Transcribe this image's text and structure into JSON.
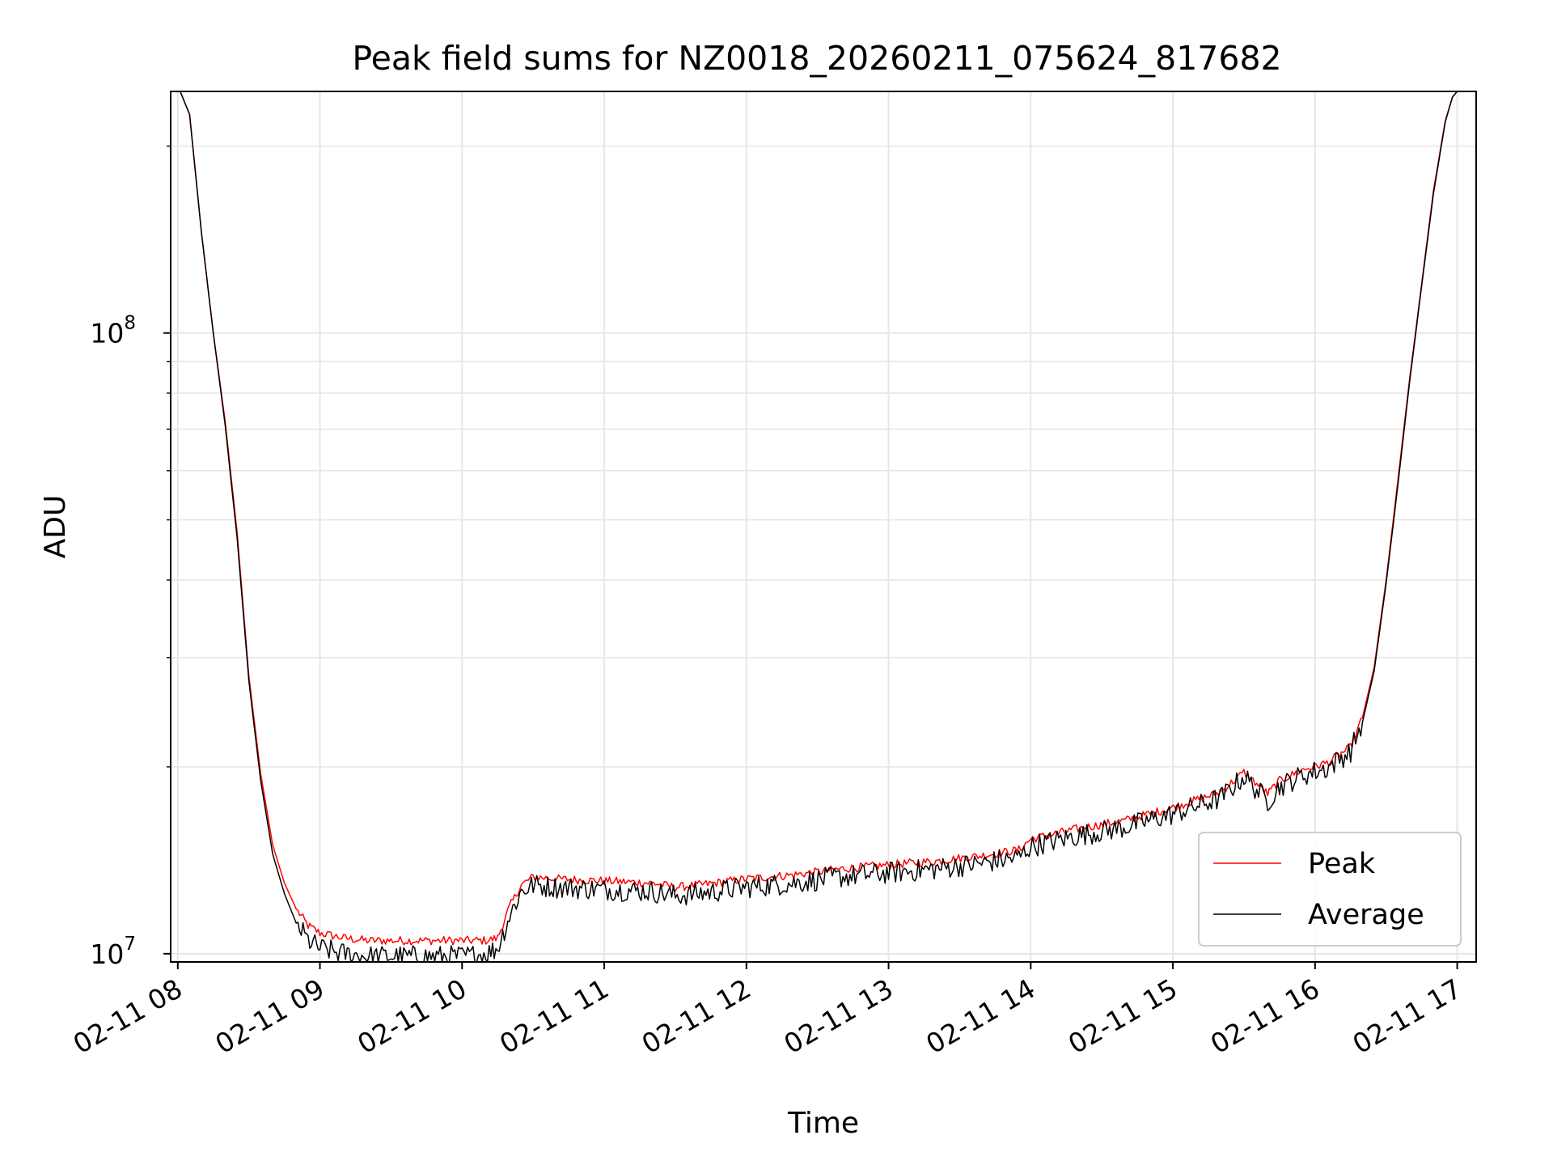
{
  "chart_data": {
    "type": "line",
    "title": "Peak field sums for NZ0018_20260211_075624_817682",
    "xlabel": "Time",
    "ylabel": "ADU",
    "yscale": "log",
    "grid": true,
    "legend_position": "lower-right",
    "xlim": [
      "02-11 07:57",
      "02-11 17:08"
    ],
    "ylim": [
      9700000,
      245000000
    ],
    "x_ticks": [
      "02-11 08",
      "02-11 09",
      "02-11 10",
      "02-11 11",
      "02-11 12",
      "02-11 13",
      "02-11 14",
      "02-11 15",
      "02-11 16",
      "02-11 17"
    ],
    "y_ticks": [
      {
        "base": "10",
        "exp": "7",
        "value": 10000000
      },
      {
        "base": "10",
        "exp": "8",
        "value": 100000000
      }
    ],
    "x": [
      "02-11 07:57",
      "02-11 08:01",
      "02-11 08:05",
      "02-11 08:10",
      "02-11 08:15",
      "02-11 08:20",
      "02-11 08:25",
      "02-11 08:30",
      "02-11 08:35",
      "02-11 08:40",
      "02-11 08:45",
      "02-11 08:50",
      "02-11 08:55",
      "02-11 09:00",
      "02-11 09:10",
      "02-11 09:20",
      "02-11 09:30",
      "02-11 09:40",
      "02-11 09:50",
      "02-11 10:00",
      "02-11 10:10",
      "02-11 10:15",
      "02-11 10:20",
      "02-11 10:25",
      "02-11 10:30",
      "02-11 10:40",
      "02-11 11:00",
      "02-11 11:20",
      "02-11 11:30",
      "02-11 11:40",
      "02-11 12:00",
      "02-11 12:20",
      "02-11 12:40",
      "02-11 13:00",
      "02-11 13:20",
      "02-11 13:40",
      "02-11 13:55",
      "02-11 14:00",
      "02-11 14:20",
      "02-11 14:40",
      "02-11 15:00",
      "02-11 15:20",
      "02-11 15:30",
      "02-11 15:40",
      "02-11 15:45",
      "02-11 15:55",
      "02-11 16:05",
      "02-11 16:15",
      "02-11 16:20",
      "02-11 16:25",
      "02-11 16:30",
      "02-11 16:35",
      "02-11 16:40",
      "02-11 16:45",
      "02-11 16:50",
      "02-11 16:55",
      "02-11 16:58",
      "02-11 17:00",
      "02-11 17:03",
      "02-11 17:08"
    ],
    "series": [
      {
        "name": "Peak",
        "color": "#ff0000",
        "values": [
          245000000,
          245000000,
          225000000,
          145000000,
          100000000,
          72000000,
          48000000,
          28000000,
          19500000,
          15000000,
          13000000,
          11800000,
          11100000,
          10800000,
          10600000,
          10500000,
          10500000,
          10500000,
          10500000,
          10500000,
          10500000,
          10600000,
          11900000,
          12900000,
          13300000,
          13200000,
          13100000,
          13000000,
          12800000,
          12900000,
          13200000,
          13400000,
          13700000,
          13900000,
          14100000,
          14400000,
          14700000,
          15300000,
          15900000,
          16400000,
          17200000,
          18200000,
          19600000,
          18100000,
          19000000,
          19800000,
          20300000,
          21500000,
          24000000,
          29000000,
          40000000,
          58000000,
          85000000,
          120000000,
          170000000,
          220000000,
          240000000,
          245000000,
          245000000,
          245000000
        ]
      },
      {
        "name": "Average",
        "color": "#000000",
        "values": [
          245000000,
          245000000,
          225000000,
          145000000,
          100000000,
          71000000,
          47000000,
          27500000,
          19000000,
          14500000,
          12500000,
          11200000,
          10500000,
          10200000,
          10000000,
          9900000,
          9900000,
          9900000,
          9900000,
          9900000,
          10000000,
          10200000,
          11500000,
          12600000,
          12900000,
          12800000,
          12700000,
          12600000,
          12400000,
          12500000,
          12800000,
          13000000,
          13300000,
          13500000,
          13700000,
          14000000,
          14300000,
          14900000,
          15500000,
          16000000,
          16800000,
          17800000,
          19300000,
          17600000,
          18600000,
          19400000,
          19900000,
          21200000,
          23600000,
          28600000,
          39500000,
          57000000,
          84000000,
          119000000,
          168000000,
          219000000,
          240000000,
          245000000,
          245000000,
          245000000
        ]
      }
    ]
  }
}
